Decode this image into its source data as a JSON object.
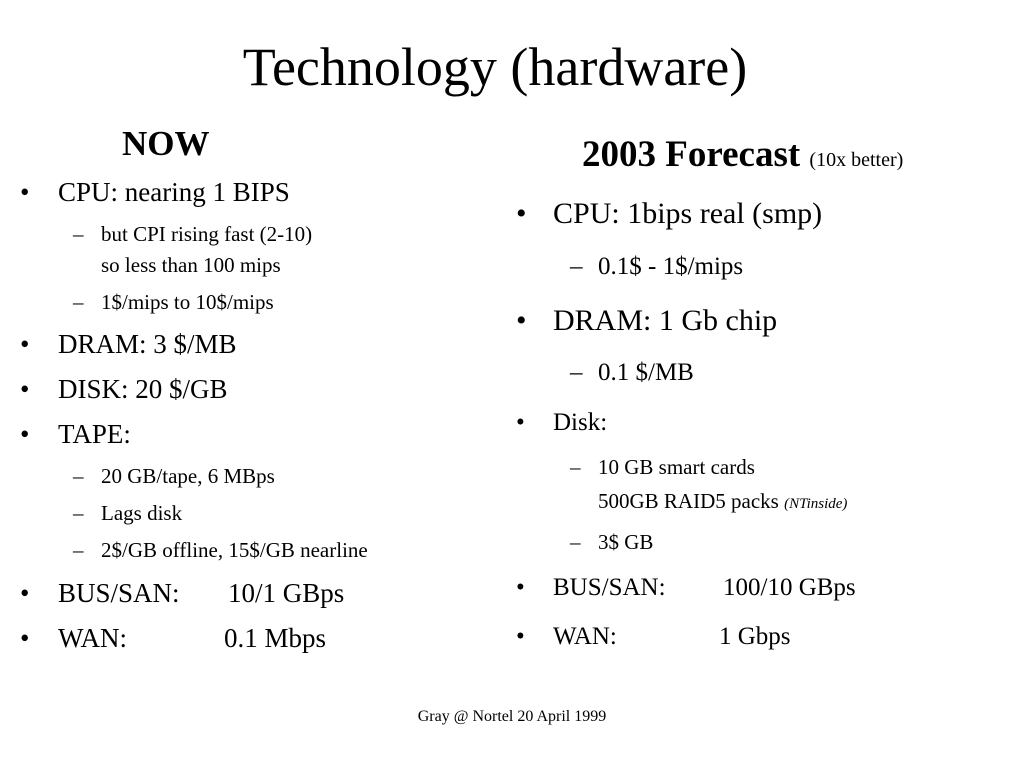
{
  "slide": {
    "title": "Technology (hardware)",
    "footer": "Gray @ Nortel 20 April 1999"
  },
  "now": {
    "heading": "NOW",
    "cpu": "CPU: nearing 1 BIPS",
    "cpi_line1": "but CPI rising fast (2-10)",
    "cpi_line2": "so less than 100 mips",
    "mips_cost": "1$/mips to 10$/mips",
    "dram": "DRAM: 3 $/MB",
    "disk": "DISK: 20 $/GB",
    "tape": "TAPE:",
    "tape1": "20 GB/tape, 6 MBps",
    "tape2": "Lags disk",
    "tape3": "2$/GB offline, 15$/GB nearline",
    "bus_label": "BUS/SAN:",
    "bus_value": "10/1 GBps",
    "wan_label": "WAN:",
    "wan_value": "0.1 Mbps"
  },
  "forecast": {
    "heading": "2003 Forecast",
    "note": "(10x better)",
    "cpu": "CPU: 1bips real (smp)",
    "mips_cost": "0.1$ - 1$/mips",
    "dram": "DRAM: 1 Gb chip",
    "dram_cost": "0.1 $/MB",
    "disk": "Disk:",
    "disk1": "10 GB smart cards",
    "disk2": "500GB RAID5 packs",
    "disk2_note": "(NTinside)",
    "disk3": "3$ GB",
    "bus_label": "BUS/SAN:",
    "bus_value": "100/10 GBps",
    "wan_label": "WAN:",
    "wan_value": "1 Gbps"
  },
  "glyphs": {
    "bullet": "•",
    "dash": "–"
  }
}
